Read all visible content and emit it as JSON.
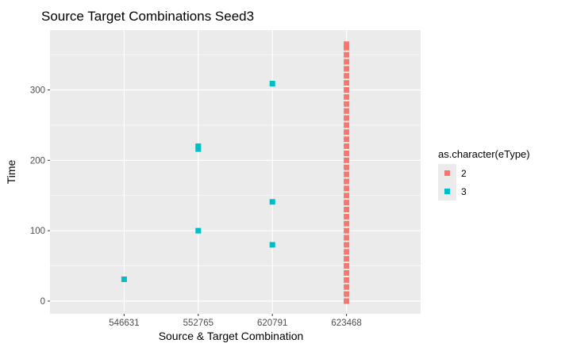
{
  "chart_data": {
    "type": "scatter",
    "title": "Source Target Combinations Seed3",
    "xlabel": "Source & Target Combination",
    "ylabel": "Time",
    "categories": [
      "546631",
      "552765",
      "620791",
      "623468"
    ],
    "y_ticks": [
      0,
      100,
      200,
      300
    ],
    "ylim": [
      -18,
      385
    ],
    "grid": true,
    "legend": {
      "title": "as.character(eType)",
      "position": "right",
      "entries": [
        {
          "label": "2",
          "color": "#F8766D"
        },
        {
          "label": "3",
          "color": "#00BFC4"
        }
      ]
    },
    "series": [
      {
        "name": "2",
        "color": "#F8766D",
        "points": [
          {
            "x": "623468",
            "y": 0
          },
          {
            "x": "623468",
            "y": 10
          },
          {
            "x": "623468",
            "y": 20
          },
          {
            "x": "623468",
            "y": 30
          },
          {
            "x": "623468",
            "y": 40
          },
          {
            "x": "623468",
            "y": 50
          },
          {
            "x": "623468",
            "y": 60
          },
          {
            "x": "623468",
            "y": 70
          },
          {
            "x": "623468",
            "y": 80
          },
          {
            "x": "623468",
            "y": 90
          },
          {
            "x": "623468",
            "y": 100
          },
          {
            "x": "623468",
            "y": 110
          },
          {
            "x": "623468",
            "y": 120
          },
          {
            "x": "623468",
            "y": 130
          },
          {
            "x": "623468",
            "y": 140
          },
          {
            "x": "623468",
            "y": 150
          },
          {
            "x": "623468",
            "y": 160
          },
          {
            "x": "623468",
            "y": 170
          },
          {
            "x": "623468",
            "y": 180
          },
          {
            "x": "623468",
            "y": 190
          },
          {
            "x": "623468",
            "y": 200
          },
          {
            "x": "623468",
            "y": 210
          },
          {
            "x": "623468",
            "y": 220
          },
          {
            "x": "623468",
            "y": 230
          },
          {
            "x": "623468",
            "y": 240
          },
          {
            "x": "623468",
            "y": 250
          },
          {
            "x": "623468",
            "y": 260
          },
          {
            "x": "623468",
            "y": 270
          },
          {
            "x": "623468",
            "y": 280
          },
          {
            "x": "623468",
            "y": 290
          },
          {
            "x": "623468",
            "y": 300
          },
          {
            "x": "623468",
            "y": 310
          },
          {
            "x": "623468",
            "y": 320
          },
          {
            "x": "623468",
            "y": 330
          },
          {
            "x": "623468",
            "y": 340
          },
          {
            "x": "623468",
            "y": 350
          },
          {
            "x": "623468",
            "y": 360
          },
          {
            "x": "623468",
            "y": 365
          }
        ]
      },
      {
        "name": "3",
        "color": "#00BFC4",
        "points": [
          {
            "x": "546631",
            "y": 31
          },
          {
            "x": "552765",
            "y": 100
          },
          {
            "x": "552765",
            "y": 216
          },
          {
            "x": "552765",
            "y": 220
          },
          {
            "x": "620791",
            "y": 80
          },
          {
            "x": "620791",
            "y": 141
          },
          {
            "x": "620791",
            "y": 309
          }
        ]
      }
    ]
  }
}
